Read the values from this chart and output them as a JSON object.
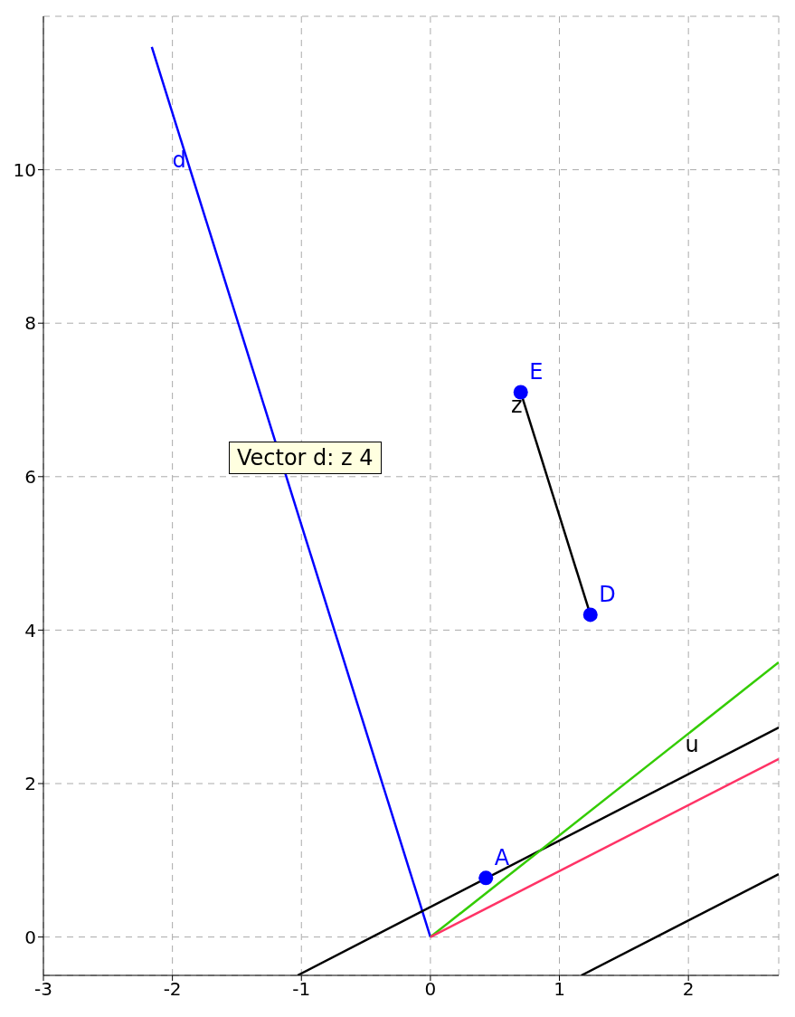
{
  "chart_data": {
    "type": "line",
    "xlim": [
      -3,
      2.7
    ],
    "ylim": [
      -0.5,
      12
    ],
    "xticks": [
      -3,
      -2,
      -1,
      0,
      1,
      2
    ],
    "yticks": [
      0,
      2,
      4,
      6,
      8,
      10
    ],
    "grid": true,
    "legend": false,
    "marker": "none",
    "line_style": "solid",
    "annotations": [
      "Vector d: z 4"
    ],
    "series": [
      {
        "name": "d",
        "color": "#0000ff",
        "x": [
          0,
          -2.16
        ],
        "values": [
          0,
          11.6
        ]
      },
      {
        "name": "u",
        "color": "#000000",
        "x": [
          -1.03,
          2.7
        ],
        "values": [
          -0.5,
          2.73
        ]
      },
      {
        "color": "#33cc00",
        "x": [
          0,
          2.7
        ],
        "values": [
          0,
          3.58
        ]
      },
      {
        "color": "#ff3366",
        "x": [
          0,
          2.7
        ],
        "values": [
          0,
          2.32
        ]
      },
      {
        "color": "#000000",
        "x": [
          1.17,
          2.7
        ],
        "values": [
          -0.5,
          0.82
        ]
      },
      {
        "name": "z",
        "color": "#000000",
        "x": [
          1.24,
          0.7
        ],
        "values": [
          4.2,
          7.1
        ]
      },
      {
        "name": "A",
        "type": "scatter",
        "marker": "circle",
        "color": "#0000ff",
        "x": [
          0.43
        ],
        "values": [
          0.77
        ]
      },
      {
        "name": "D",
        "type": "scatter",
        "marker": "circle",
        "color": "#0000ff",
        "x": [
          1.24
        ],
        "values": [
          4.2
        ]
      },
      {
        "name": "E",
        "type": "scatter",
        "marker": "circle",
        "color": "#0000ff",
        "x": [
          0.7
        ],
        "values": [
          7.1
        ]
      }
    ]
  }
}
